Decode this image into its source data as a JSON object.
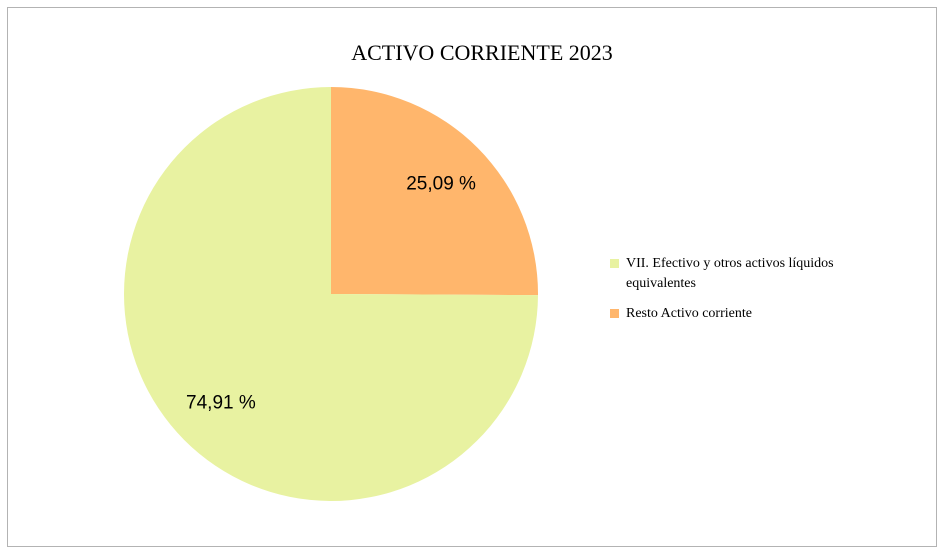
{
  "chart_data": {
    "type": "pie",
    "title": "ACTIVO CORRIENTE 2023",
    "categories": [
      "VII. Efectivo y otros activos líquidos equivalentes",
      "Resto Activo corriente"
    ],
    "values": [
      74.91,
      25.09
    ],
    "value_labels": [
      "74,91 %",
      "25,09 %"
    ],
    "colors": [
      "#e8f2a1",
      "#ffb66c"
    ]
  }
}
